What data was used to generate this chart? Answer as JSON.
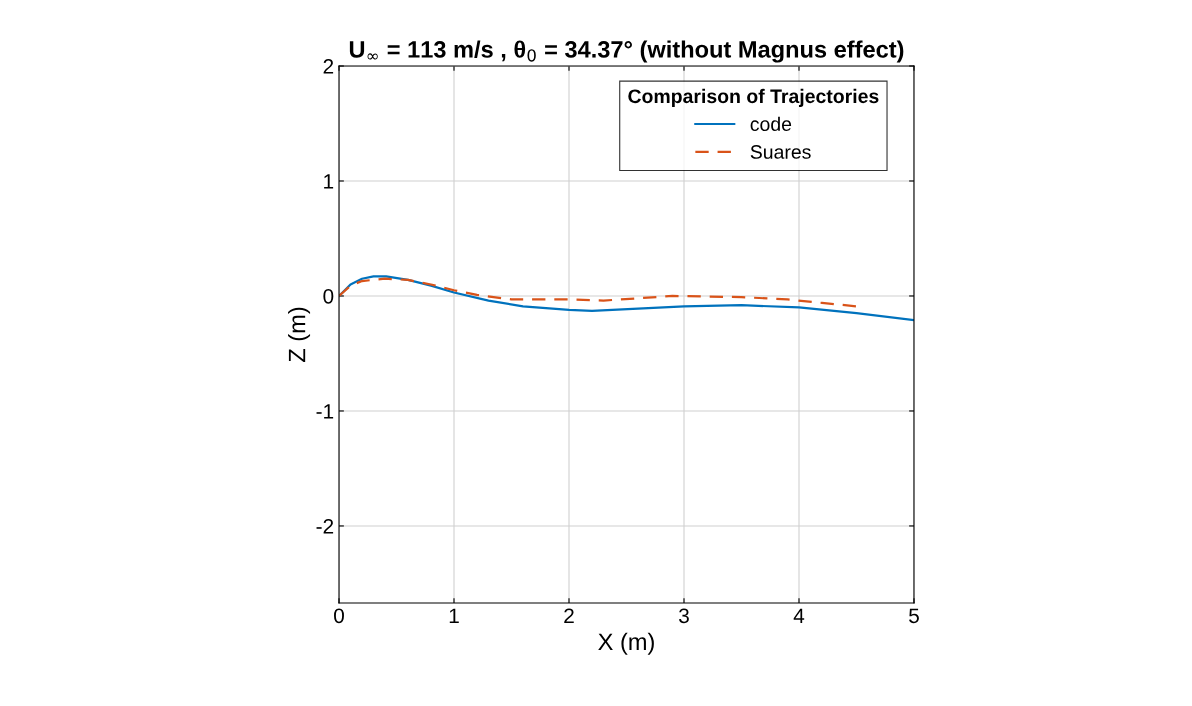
{
  "chart_data": {
    "type": "line",
    "title": "U$_{∞}$ = 113 m/s , θ$_{0}$ = 34.37° (without Magnus effect)",
    "xlabel": "X (m)",
    "ylabel": "Z (m)",
    "legend_title": "Comparison of Trajectories",
    "xlim": [
      0,
      5
    ],
    "xticks": [
      0,
      1,
      2,
      3,
      4,
      5
    ],
    "ylim": [
      -2.67,
      2
    ],
    "yticks": [
      -2,
      -1,
      0,
      1,
      2
    ],
    "grid": true,
    "legend": "top right",
    "series": [
      {
        "name": "code",
        "color": "#0072bd",
        "line_style": "solid",
        "x": [
          0,
          0.1,
          0.2,
          0.3,
          0.41,
          0.6,
          0.8,
          1.0,
          1.3,
          1.6,
          2.0,
          2.2,
          2.6,
          3.0,
          3.5,
          4.0,
          4.5,
          5.0
        ],
        "values": [
          0,
          0.1,
          0.15,
          0.17,
          0.17,
          0.14,
          0.09,
          0.03,
          -0.04,
          -0.09,
          -0.12,
          -0.13,
          -0.11,
          -0.09,
          -0.08,
          -0.1,
          -0.15,
          -0.21
        ]
      },
      {
        "name": "Suares",
        "color": "#d95319",
        "line_style": "dashed",
        "x": [
          0,
          0.1,
          0.2,
          0.4,
          0.6,
          0.8,
          1.0,
          1.2,
          1.5,
          2.0,
          2.3,
          2.6,
          2.9,
          3.5,
          3.9,
          4.2,
          4.5
        ],
        "values": [
          0,
          0.09,
          0.13,
          0.15,
          0.14,
          0.1,
          0.05,
          0.01,
          -0.03,
          -0.03,
          -0.04,
          -0.02,
          0.0,
          -0.01,
          -0.03,
          -0.06,
          -0.09
        ]
      }
    ]
  }
}
